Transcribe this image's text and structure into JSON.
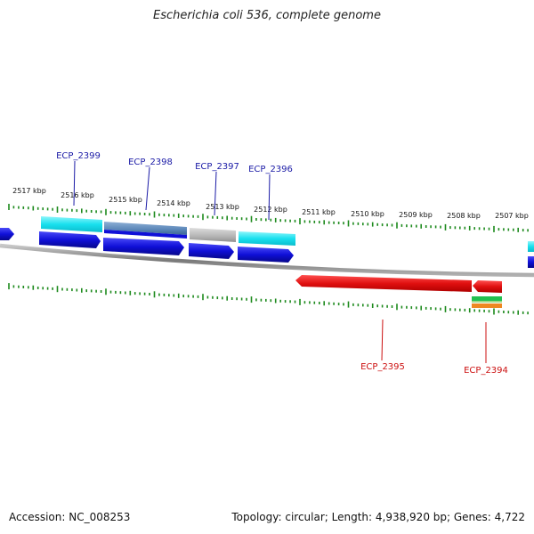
{
  "title": "Escherichia coli 536, complete genome",
  "footer": {
    "accession": "Accession: NC_008253",
    "summary": "Topology: circular; Length: 4,938,920 bp; Genes: 4,722"
  },
  "ruler": {
    "labels": [
      "2517 kbp",
      "2516 kbp",
      "2515 kbp",
      "2514 kbp",
      "2513 kbp",
      "2512 kbp",
      "2511 kbp",
      "2510 kbp",
      "2509 kbp",
      "2508 kbp",
      "2507 kbp"
    ]
  },
  "gene_labels": [
    {
      "name": "ECP_2399",
      "color": "#1a1aa6"
    },
    {
      "name": "ECP_2398",
      "color": "#1a1aa6"
    },
    {
      "name": "ECP_2397",
      "color": "#1a1aa6"
    },
    {
      "name": "ECP_2396",
      "color": "#1a1aa6"
    },
    {
      "name": "ECP_2395",
      "color": "#cc1111"
    },
    {
      "name": "ECP_2394",
      "color": "#cc1111"
    }
  ],
  "colors": {
    "backbone": "#8a8a8a",
    "tick": "#1d8a1d",
    "forward_gene": "#1010d8",
    "reverse_gene": "#e01010",
    "cyan_feature": "#19e0ee",
    "steel_feature": "#5a86b8",
    "grey_feature": "#b4b4b4",
    "green_feature": "#22c050",
    "orange_feature": "#ee8822"
  }
}
